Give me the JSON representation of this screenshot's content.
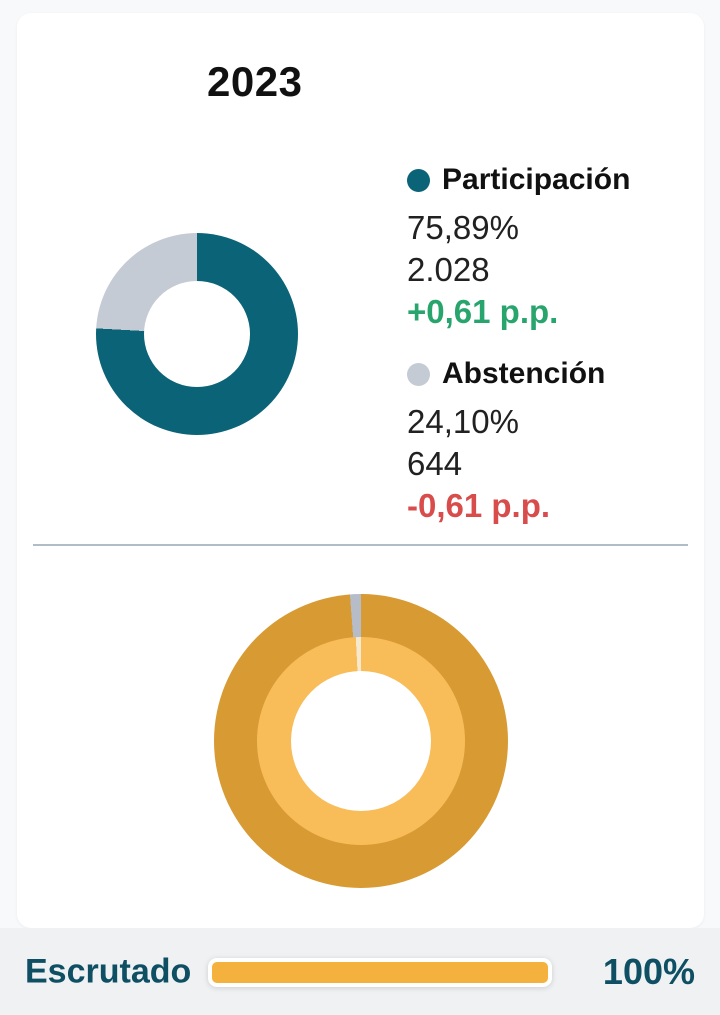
{
  "card": {
    "title": "2023",
    "legend": {
      "participation": {
        "label": "Participación",
        "percent": "75,89%",
        "count": "2.028",
        "delta": "+0,61 p.p.",
        "delta_color": "#27a56d",
        "color": "#0b6377"
      },
      "abstention": {
        "label": "Abstención",
        "percent": "24,10%",
        "count": "644",
        "delta": "-0,61 p.p.",
        "delta_color": "#d84c4c",
        "color": "#c5cbd5"
      }
    }
  },
  "chart_data": [
    {
      "type": "pie",
      "subtype": "donut",
      "title": "2023",
      "legend_position": "right",
      "slices": [
        {
          "label": "Participación",
          "value_percent": 75.89,
          "count": 2028,
          "delta_pp": "+0,61 p.p.",
          "color": "#0b6377"
        },
        {
          "label": "Abstención",
          "value_percent": 24.1,
          "count": 644,
          "delta_pp": "-0,61 p.p.",
          "color": "#c5cbd5"
        }
      ]
    },
    {
      "type": "pie",
      "subtype": "nested-donut",
      "rings": [
        {
          "name": "outer",
          "slices": [
            {
              "value_percent": 98.8,
              "color": "#d89a33"
            },
            {
              "value_percent": 1.2,
              "color": "#b6bdc9"
            }
          ]
        },
        {
          "name": "inner",
          "slices": [
            {
              "value_percent": 99.2,
              "color": "#f8bc59"
            },
            {
              "value_percent": 0.8,
              "color": "#f6e9cf"
            }
          ]
        }
      ]
    }
  ],
  "footer": {
    "label": "Escrutado",
    "value": "100%",
    "progress_percent": 100,
    "progress_color": "#f5b13d",
    "text_color": "#0e4f63"
  }
}
